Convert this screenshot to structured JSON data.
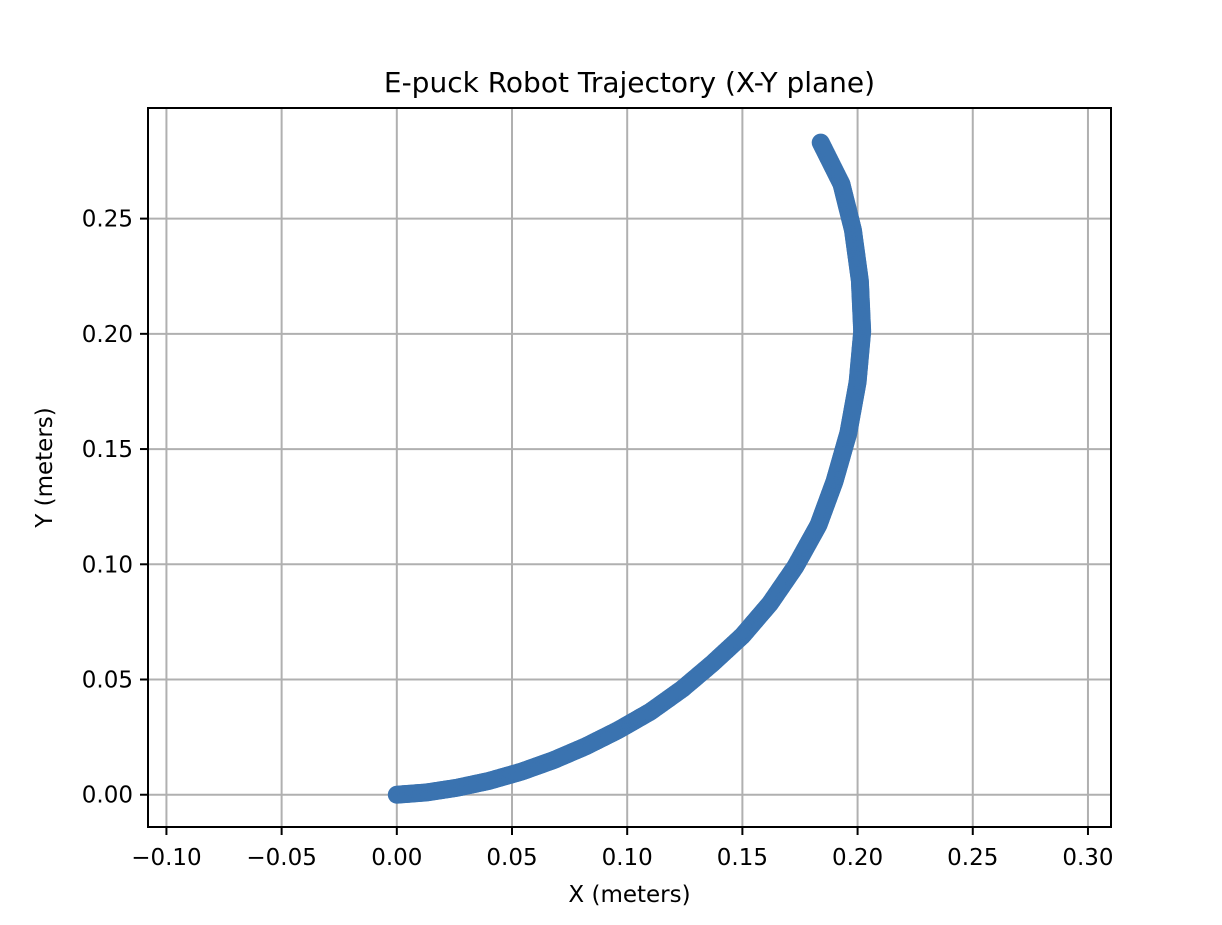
{
  "chart_data": {
    "type": "scatter",
    "title": "E-puck Robot Trajectory (X-Y plane)",
    "xlabel": "X (meters)",
    "ylabel": "Y (meters)",
    "xlim": [
      -0.108,
      0.31
    ],
    "ylim": [
      -0.014,
      0.298
    ],
    "xticks": [
      -0.1,
      -0.05,
      0.0,
      0.05,
      0.1,
      0.15,
      0.2,
      0.25,
      0.3
    ],
    "xtick_labels": [
      "−0.10",
      "−0.05",
      "0.00",
      "0.05",
      "0.10",
      "0.15",
      "0.20",
      "0.25",
      "0.30"
    ],
    "yticks": [
      0.0,
      0.05,
      0.1,
      0.15,
      0.2,
      0.25
    ],
    "ytick_labels": [
      "0.00",
      "0.05",
      "0.10",
      "0.15",
      "0.20",
      "0.25"
    ],
    "grid": true,
    "legend": false,
    "marker_color": "#3a73b0",
    "series": [
      {
        "x": [
          0.0,
          0.013,
          0.026,
          0.04,
          0.054,
          0.068,
          0.082,
          0.096,
          0.11,
          0.124,
          0.137,
          0.15,
          0.162,
          0.173,
          0.183,
          0.19,
          0.196,
          0.2,
          0.202,
          0.201,
          0.198,
          0.193,
          0.184
        ],
        "y": [
          0.0,
          0.001,
          0.003,
          0.006,
          0.01,
          0.015,
          0.021,
          0.028,
          0.036,
          0.046,
          0.057,
          0.069,
          0.083,
          0.099,
          0.117,
          0.136,
          0.157,
          0.179,
          0.201,
          0.223,
          0.245,
          0.265,
          0.283
        ]
      }
    ]
  }
}
